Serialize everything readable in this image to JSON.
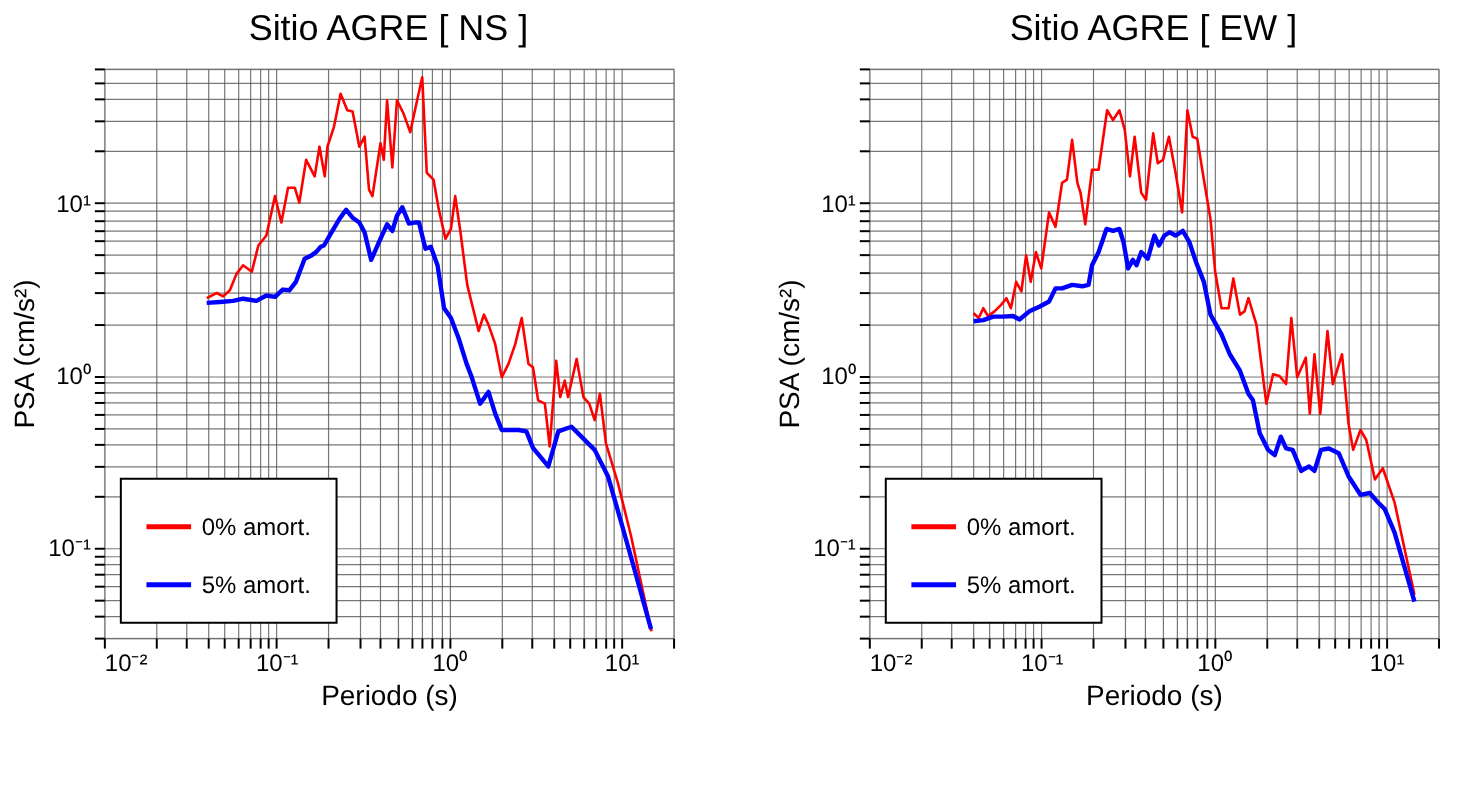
{
  "chart_data": [
    {
      "type": "line",
      "title": "Sitio AGRE [ NS ]",
      "xlabel": "Periodo (s)",
      "ylabel": "PSA (cm/s²)",
      "log": "xy",
      "grid": true,
      "legend": "bottom left",
      "xlim": [
        0.01,
        20
      ],
      "ylim": [
        0.03,
        60
      ],
      "xticks": [
        {
          "value": 0.01,
          "label": "10⁻²"
        },
        {
          "value": 0.02,
          "label": null
        },
        {
          "value": 0.03,
          "label": null
        },
        {
          "value": 0.04,
          "label": null
        },
        {
          "value": 0.05,
          "label": null
        },
        {
          "value": 0.06,
          "label": null
        },
        {
          "value": 0.07,
          "label": null
        },
        {
          "value": 0.08,
          "label": null
        },
        {
          "value": 0.09,
          "label": null
        },
        {
          "value": 0.1,
          "label": "10⁻¹"
        },
        {
          "value": 0.2,
          "label": null
        },
        {
          "value": 0.3,
          "label": null
        },
        {
          "value": 0.4,
          "label": null
        },
        {
          "value": 0.5,
          "label": null
        },
        {
          "value": 0.6,
          "label": null
        },
        {
          "value": 0.7,
          "label": null
        },
        {
          "value": 0.8,
          "label": null
        },
        {
          "value": 0.9,
          "label": null
        },
        {
          "value": 1,
          "label": "10⁰"
        },
        {
          "value": 2,
          "label": null
        },
        {
          "value": 3,
          "label": null
        },
        {
          "value": 4,
          "label": null
        },
        {
          "value": 5,
          "label": null
        },
        {
          "value": 6,
          "label": null
        },
        {
          "value": 7,
          "label": null
        },
        {
          "value": 8,
          "label": null
        },
        {
          "value": 9,
          "label": null
        },
        {
          "value": 10,
          "label": "10¹"
        },
        {
          "value": 20,
          "label": null
        }
      ],
      "yticks": [
        {
          "value": 0.03,
          "label": null
        },
        {
          "value": 0.04,
          "label": null
        },
        {
          "value": 0.05,
          "label": null
        },
        {
          "value": 0.06,
          "label": null
        },
        {
          "value": 0.07,
          "label": null
        },
        {
          "value": 0.08,
          "label": null
        },
        {
          "value": 0.09,
          "label": null
        },
        {
          "value": 0.1,
          "label": "10⁻¹"
        },
        {
          "value": 0.2,
          "label": null
        },
        {
          "value": 0.3,
          "label": null
        },
        {
          "value": 0.4,
          "label": null
        },
        {
          "value": 0.5,
          "label": null
        },
        {
          "value": 0.6,
          "label": null
        },
        {
          "value": 0.7,
          "label": null
        },
        {
          "value": 0.8,
          "label": null
        },
        {
          "value": 0.9,
          "label": null
        },
        {
          "value": 1,
          "label": "10⁰"
        },
        {
          "value": 2,
          "label": null
        },
        {
          "value": 3,
          "label": null
        },
        {
          "value": 4,
          "label": null
        },
        {
          "value": 5,
          "label": null
        },
        {
          "value": 6,
          "label": null
        },
        {
          "value": 7,
          "label": null
        },
        {
          "value": 8,
          "label": null
        },
        {
          "value": 9,
          "label": null
        },
        {
          "value": 10,
          "label": "10¹"
        },
        {
          "value": 20,
          "label": null
        },
        {
          "value": 30,
          "label": null
        },
        {
          "value": 40,
          "label": null
        },
        {
          "value": 50,
          "label": null
        },
        {
          "value": 60,
          "label": null
        }
      ],
      "series": [
        {
          "name": "0% amort.",
          "color": "#ff0000",
          "x": [
            0.0395,
            0.0451,
            0.0492,
            0.0538,
            0.0588,
            0.0642,
            0.0721,
            0.0787,
            0.0876,
            0.0983,
            0.107,
            0.117,
            0.128,
            0.136,
            0.149,
            0.167,
            0.178,
            0.191,
            0.198,
            0.216,
            0.236,
            0.258,
            0.277,
            0.303,
            0.325,
            0.345,
            0.361,
            0.402,
            0.42,
            0.439,
            0.471,
            0.501,
            0.547,
            0.598,
            0.643,
            0.702,
            0.746,
            0.816,
            0.875,
            0.957,
            1.03,
            1.09,
            1.17,
            1.28,
            1.49,
            1.6,
            1.7,
            1.86,
            2.03,
            2.22,
            2.43,
            2.65,
            2.9,
            3.08,
            3.3,
            3.61,
            3.85,
            4.2,
            4.43,
            4.71,
            4.92,
            5.52,
            6.04,
            6.53,
            7.02,
            7.53,
            8.16,
            9.57,
            11.4,
            13.0,
            15.0
          ],
          "values": [
            2.79,
            2.99,
            2.86,
            3.1,
            3.86,
            4.33,
            3.97,
            5.64,
            6.44,
            10.9,
            7.67,
            12.2,
            12.2,
            10.0,
            17.7,
            14.2,
            21.1,
            14.2,
            21.1,
            27.5,
            42.8,
            34.3,
            33.7,
            21.1,
            24.1,
            11.9,
            10.9,
            22.1,
            17.7,
            39.2,
            16.0,
            39.2,
            32.8,
            25.6,
            35.8,
            53.3,
            14.9,
            13.6,
            9.16,
            6.17,
            7.03,
            10.9,
            6.73,
            3.33,
            1.8,
            2.24,
            1.96,
            1.51,
            0.97,
            1.16,
            1.51,
            2.14,
            1.16,
            1.11,
            0.713,
            0.682,
            0.385,
            1.21,
            0.745,
            0.927,
            0.745,
            1.24,
            0.745,
            0.682,
            0.547,
            0.778,
            0.402,
            0.237,
            0.117,
            0.0632,
            0.0327
          ]
        },
        {
          "name": "5% amort.",
          "color": "#0000ff",
          "x": [
            0.0395,
            0.0471,
            0.0562,
            0.0642,
            0.0767,
            0.0876,
            0.0983,
            0.109,
            0.119,
            0.13,
            0.146,
            0.16,
            0.17,
            0.181,
            0.189,
            0.207,
            0.232,
            0.254,
            0.277,
            0.303,
            0.325,
            0.355,
            0.394,
            0.439,
            0.471,
            0.501,
            0.538,
            0.588,
            0.643,
            0.672,
            0.733,
            0.787,
            0.861,
            0.94,
            1.03,
            1.14,
            1.27,
            1.36,
            1.52,
            1.7,
            1.86,
            2.03,
            2.54,
            2.82,
            3.08,
            3.78,
            4.32,
            5.15,
            5.88,
            7.02,
            8.38,
            10.0,
            11.9,
            14.9
          ],
          "values": [
            2.62,
            2.65,
            2.69,
            2.77,
            2.69,
            2.89,
            2.84,
            3.13,
            3.1,
            3.47,
            4.73,
            4.94,
            5.16,
            5.54,
            5.64,
            6.61,
            8.02,
            9.08,
            8.17,
            7.67,
            6.73,
            4.65,
            5.9,
            7.48,
            6.85,
            8.39,
            9.4,
            7.55,
            7.67,
            7.67,
            5.4,
            5.54,
            4.33,
            2.44,
            2.14,
            1.64,
            1.16,
            0.97,
            0.682,
            0.798,
            0.597,
            0.48,
            0.48,
            0.471,
            0.378,
            0.295,
            0.471,
            0.501,
            0.439,
            0.368,
            0.259,
            0.14,
            0.0755,
            0.0336
          ]
        }
      ]
    },
    {
      "type": "line",
      "title": "Sitio AGRE [ EW ]",
      "xlabel": "Periodo (s)",
      "ylabel": "PSA (cm/s²)",
      "log": "xy",
      "grid": true,
      "legend": "bottom left",
      "xlim": [
        0.01,
        20
      ],
      "ylim": [
        0.03,
        60
      ],
      "xticks": [
        {
          "value": 0.01,
          "label": "10⁻²"
        },
        {
          "value": 0.02,
          "label": null
        },
        {
          "value": 0.03,
          "label": null
        },
        {
          "value": 0.04,
          "label": null
        },
        {
          "value": 0.05,
          "label": null
        },
        {
          "value": 0.06,
          "label": null
        },
        {
          "value": 0.07,
          "label": null
        },
        {
          "value": 0.08,
          "label": null
        },
        {
          "value": 0.09,
          "label": null
        },
        {
          "value": 0.1,
          "label": "10⁻¹"
        },
        {
          "value": 0.2,
          "label": null
        },
        {
          "value": 0.3,
          "label": null
        },
        {
          "value": 0.4,
          "label": null
        },
        {
          "value": 0.5,
          "label": null
        },
        {
          "value": 0.6,
          "label": null
        },
        {
          "value": 0.7,
          "label": null
        },
        {
          "value": 0.8,
          "label": null
        },
        {
          "value": 0.9,
          "label": null
        },
        {
          "value": 1,
          "label": "10⁰"
        },
        {
          "value": 2,
          "label": null
        },
        {
          "value": 3,
          "label": null
        },
        {
          "value": 4,
          "label": null
        },
        {
          "value": 5,
          "label": null
        },
        {
          "value": 6,
          "label": null
        },
        {
          "value": 7,
          "label": null
        },
        {
          "value": 8,
          "label": null
        },
        {
          "value": 9,
          "label": null
        },
        {
          "value": 10,
          "label": "10¹"
        },
        {
          "value": 20,
          "label": null
        }
      ],
      "yticks": [
        {
          "value": 0.03,
          "label": null
        },
        {
          "value": 0.04,
          "label": null
        },
        {
          "value": 0.05,
          "label": null
        },
        {
          "value": 0.06,
          "label": null
        },
        {
          "value": 0.07,
          "label": null
        },
        {
          "value": 0.08,
          "label": null
        },
        {
          "value": 0.09,
          "label": null
        },
        {
          "value": 0.1,
          "label": "10⁻¹"
        },
        {
          "value": 0.2,
          "label": null
        },
        {
          "value": 0.3,
          "label": null
        },
        {
          "value": 0.4,
          "label": null
        },
        {
          "value": 0.5,
          "label": null
        },
        {
          "value": 0.6,
          "label": null
        },
        {
          "value": 0.7,
          "label": null
        },
        {
          "value": 0.8,
          "label": null
        },
        {
          "value": 0.9,
          "label": null
        },
        {
          "value": 1,
          "label": "10⁰"
        },
        {
          "value": 2,
          "label": null
        },
        {
          "value": 3,
          "label": null
        },
        {
          "value": 4,
          "label": null
        },
        {
          "value": 5,
          "label": null
        },
        {
          "value": 6,
          "label": null
        },
        {
          "value": 7,
          "label": null
        },
        {
          "value": 8,
          "label": null
        },
        {
          "value": 9,
          "label": null
        },
        {
          "value": 10,
          "label": "10¹"
        },
        {
          "value": 20,
          "label": null
        },
        {
          "value": 30,
          "label": null
        },
        {
          "value": 40,
          "label": null
        },
        {
          "value": 50,
          "label": null
        },
        {
          "value": 60,
          "label": null
        }
      ],
      "series": [
        {
          "name": "0% amort.",
          "color": "#ff0000",
          "x": [
            0.0405,
            0.0434,
            0.0461,
            0.0491,
            0.0536,
            0.0585,
            0.0628,
            0.0667,
            0.0716,
            0.0767,
            0.0817,
            0.0869,
            0.0931,
            0.1,
            0.111,
            0.121,
            0.132,
            0.141,
            0.151,
            0.162,
            0.169,
            0.18,
            0.197,
            0.215,
            0.241,
            0.261,
            0.284,
            0.305,
            0.327,
            0.348,
            0.38,
            0.405,
            0.446,
            0.474,
            0.508,
            0.55,
            0.601,
            0.656,
            0.704,
            0.755,
            0.803,
            0.877,
            0.958,
            1.02,
            1.11,
            1.22,
            1.3,
            1.42,
            1.51,
            1.59,
            1.77,
            2.02,
            2.21,
            2.41,
            2.63,
            2.82,
            3.05,
            3.42,
            3.61,
            3.84,
            4.15,
            4.57,
            4.91,
            5.55,
            6.05,
            6.44,
            7.1,
            7.67,
            8.61,
            9.57,
            11.2,
            14.6
          ],
          "values": [
            2.28,
            2.14,
            2.44,
            2.2,
            2.34,
            2.55,
            2.79,
            2.44,
            3.47,
            3.05,
            4.94,
            3.47,
            5.16,
            4.15,
            8.77,
            7.23,
            13.0,
            13.6,
            23.1,
            13.0,
            11.4,
            7.48,
            15.5,
            15.5,
            34.3,
            30.1,
            34.3,
            26.4,
            14.2,
            24.1,
            11.4,
            10.4,
            25.2,
            16.9,
            17.7,
            24.1,
            14.9,
            8.77,
            34.3,
            24.1,
            23.5,
            13.6,
            8.02,
            3.97,
            2.44,
            2.44,
            3.63,
            2.24,
            2.34,
            2.79,
            1.96,
            0.682,
            1.01,
            0.986,
            0.887,
            2.14,
            0.97,
            1.26,
            0.597,
            1.32,
            0.597,
            1.8,
            0.887,
            1.32,
            0.524,
            0.368,
            0.48,
            0.42,
            0.248,
            0.288,
            0.182,
            0.0531
          ]
        },
        {
          "name": "5% amort.",
          "color": "#0000ff",
          "x": [
            0.0405,
            0.0461,
            0.0526,
            0.0601,
            0.0686,
            0.0748,
            0.0853,
            0.0975,
            0.111,
            0.121,
            0.132,
            0.151,
            0.173,
            0.188,
            0.197,
            0.215,
            0.239,
            0.261,
            0.284,
            0.3,
            0.319,
            0.34,
            0.357,
            0.38,
            0.415,
            0.453,
            0.482,
            0.518,
            0.555,
            0.601,
            0.662,
            0.723,
            0.789,
            0.877,
            0.958,
            1.11,
            1.24,
            1.42,
            1.59,
            1.69,
            1.85,
            2.07,
            2.26,
            2.45,
            2.63,
            2.87,
            3.22,
            3.57,
            3.84,
            4.19,
            4.66,
            5.31,
            6.05,
            7.1,
            8.04,
            8.99,
            9.82,
            11.2,
            14.6
          ],
          "values": [
            2.05,
            2.08,
            2.18,
            2.18,
            2.2,
            2.1,
            2.34,
            2.49,
            2.67,
            3.18,
            3.18,
            3.33,
            3.27,
            3.33,
            4.33,
            5.16,
            7.03,
            6.85,
            7.03,
            5.9,
            4.15,
            4.65,
            4.33,
            5.16,
            4.73,
            6.44,
            5.64,
            6.44,
            6.73,
            6.44,
            6.85,
            5.9,
            4.53,
            3.47,
            2.24,
            1.72,
            1.32,
            1.06,
            0.778,
            0.713,
            0.459,
            0.368,
            0.343,
            0.439,
            0.375,
            0.368,
            0.278,
            0.295,
            0.278,
            0.368,
            0.375,
            0.352,
            0.259,
            0.202,
            0.207,
            0.182,
            0.167,
            0.122,
            0.0485
          ]
        }
      ]
    }
  ]
}
